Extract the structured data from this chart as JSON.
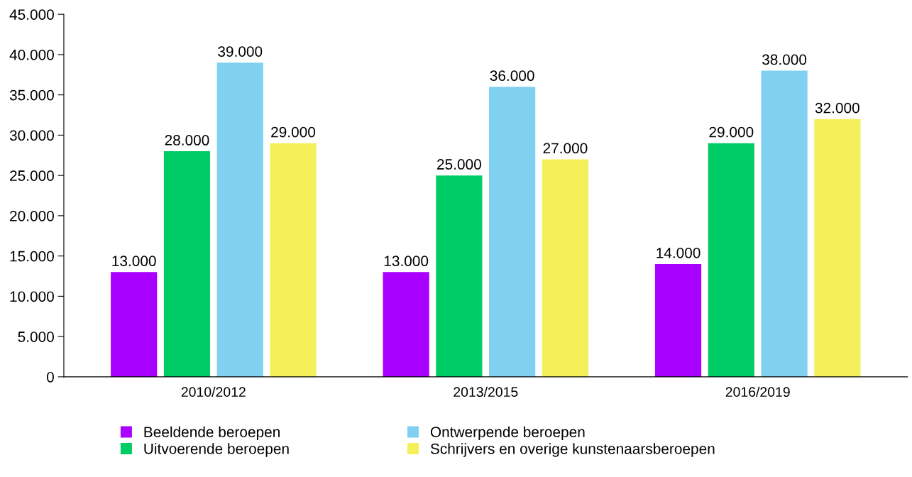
{
  "chart_data": {
    "type": "bar",
    "categories": [
      "2010/2012",
      "2013/2015",
      "2016/2019"
    ],
    "series": [
      {
        "name": "Beeldende beroepen",
        "color": "#aa00ff",
        "values": [
          13000,
          13000,
          14000
        ],
        "value_labels": [
          "13.000",
          "13.000",
          "14.000"
        ]
      },
      {
        "name": "Uitvoerende beroepen",
        "color": "#00cc66",
        "values": [
          28000,
          25000,
          29000
        ],
        "value_labels": [
          "28.000",
          "25.000",
          "29.000"
        ]
      },
      {
        "name": "Ontwerpende beroepen",
        "color": "#80d0f2",
        "values": [
          39000,
          36000,
          38000
        ],
        "value_labels": [
          "39.000",
          "36.000",
          "38.000"
        ]
      },
      {
        "name": "Schrijvers en overige kunstenaarsberoepen",
        "color": "#f5f05a",
        "values": [
          29000,
          27000,
          32000
        ],
        "value_labels": [
          "29.000",
          "27.000",
          "32.000"
        ]
      }
    ],
    "ylim": [
      0,
      45000
    ],
    "yticks": [
      0,
      {
        "value": 5000,
        "label": "5.000"
      },
      {
        "value": 10000,
        "label": "10.000"
      },
      {
        "value": 15000,
        "label": "15.000"
      },
      {
        "value": 20000,
        "label": "20.000"
      },
      {
        "value": 25000,
        "label": "25.000"
      },
      {
        "value": 30000,
        "label": "30.000"
      },
      {
        "value": 35000,
        "label": "35.000"
      },
      {
        "value": 40000,
        "label": "40.000"
      },
      {
        "value": 45000,
        "label": "45.000"
      }
    ],
    "grid": false,
    "legend": "bottom"
  }
}
